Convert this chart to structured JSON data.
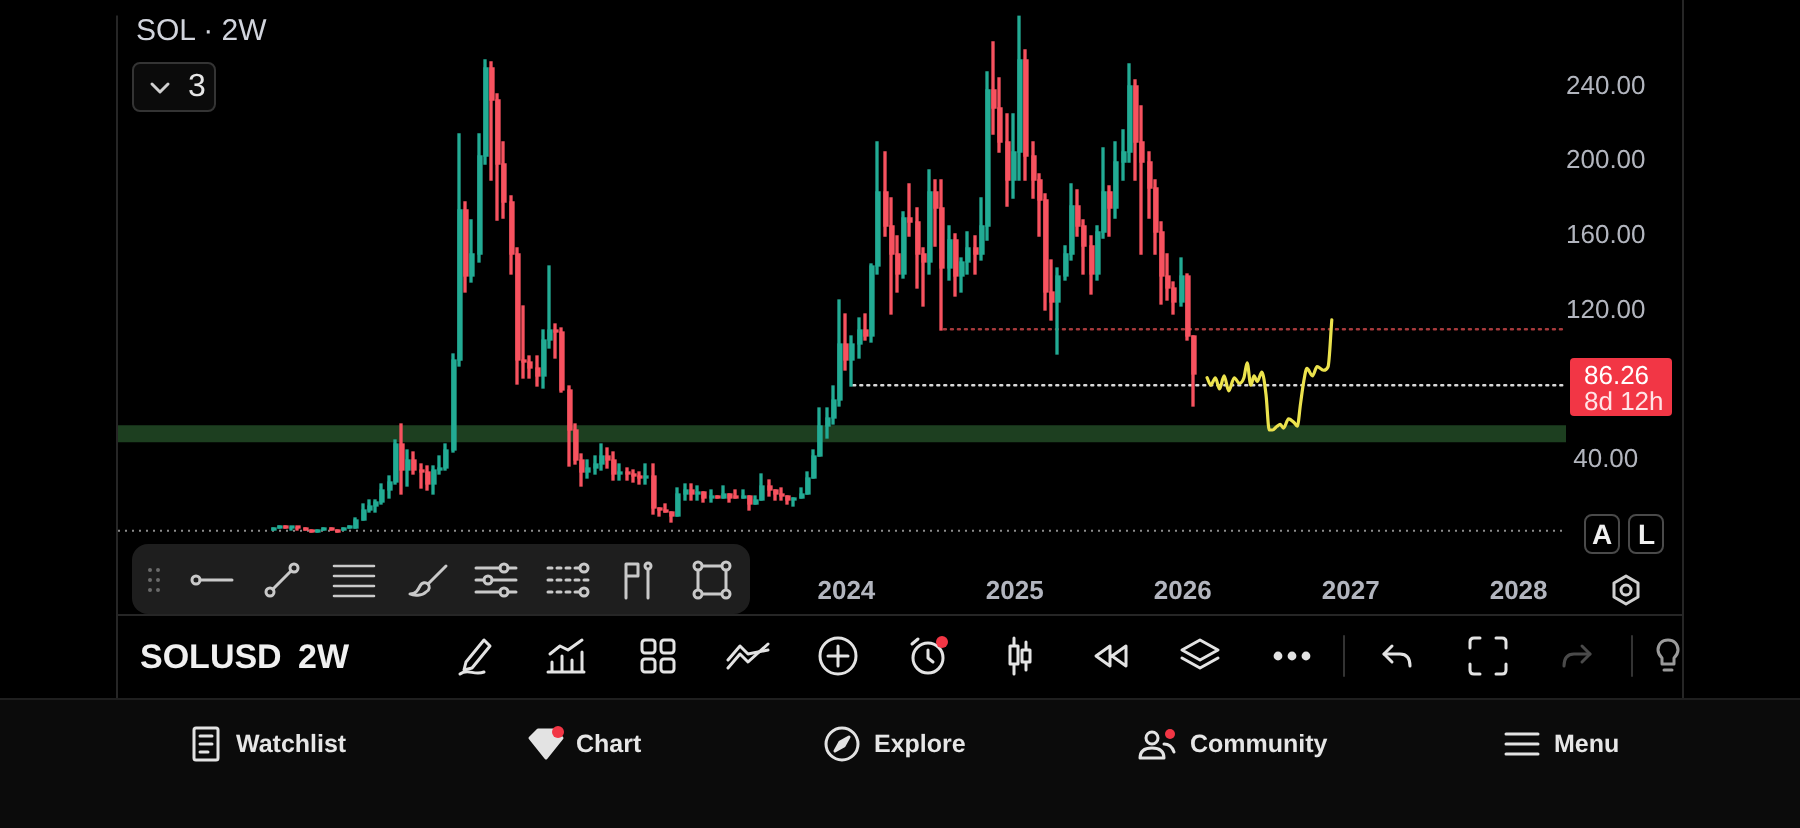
{
  "chart_data": {
    "type": "candlestick",
    "title": "SOL · 2W",
    "series": [
      {
        "x": [
          "2020-08-03",
          "2020-08-17",
          "2020-08-31",
          "2020-09-14",
          "2020-09-28",
          "2020-10-12",
          "2020-10-26",
          "2020-11-09",
          "2020-11-23",
          "2020-12-07",
          "2020-12-21",
          "2021-01-04",
          "2021-01-18",
          "2021-02-01",
          "2021-02-15",
          "2021-03-01",
          "2021-03-15",
          "2021-03-29",
          "2021-04-12",
          "2021-04-26",
          "2021-05-10",
          "2021-05-24",
          "2021-06-07",
          "2021-06-21",
          "2021-07-05",
          "2021-07-19",
          "2021-08-02",
          "2021-08-16",
          "2021-08-30",
          "2021-09-13",
          "2021-09-27",
          "2021-10-11",
          "2021-10-25",
          "2021-11-08",
          "2021-11-22",
          "2021-12-06",
          "2021-12-20",
          "2022-01-03",
          "2022-01-17",
          "2022-01-31",
          "2022-02-14",
          "2022-02-28",
          "2022-03-14",
          "2022-03-28",
          "2022-04-11",
          "2022-04-25",
          "2022-05-09",
          "2022-05-23",
          "2022-06-06",
          "2022-06-20",
          "2022-07-04",
          "2022-07-18",
          "2022-08-01",
          "2022-08-15",
          "2022-08-29",
          "2022-09-12",
          "2022-09-26",
          "2022-10-10",
          "2022-10-24",
          "2022-11-07",
          "2022-11-21",
          "2022-12-05",
          "2022-12-19",
          "2023-01-02",
          "2023-01-16",
          "2023-01-30",
          "2023-02-13",
          "2023-02-27",
          "2023-03-13",
          "2023-03-27",
          "2023-04-10",
          "2023-04-24",
          "2023-05-08",
          "2023-05-22",
          "2023-06-05",
          "2023-06-19",
          "2023-07-03",
          "2023-07-17",
          "2023-07-31",
          "2023-08-14",
          "2023-08-28",
          "2023-09-11",
          "2023-09-25",
          "2023-10-09",
          "2023-10-23",
          "2023-11-06",
          "2023-11-20",
          "2023-12-04",
          "2023-12-18",
          "2024-01-01",
          "2024-01-15",
          "2024-01-29",
          "2024-02-12",
          "2024-02-26",
          "2024-03-11",
          "2024-03-25",
          "2024-04-08",
          "2024-04-22",
          "2024-05-06",
          "2024-05-20",
          "2024-06-03",
          "2024-06-17",
          "2024-07-01",
          "2024-07-15",
          "2024-07-29",
          "2024-08-12",
          "2024-08-26",
          "2024-09-09",
          "2024-09-23",
          "2024-10-07",
          "2024-10-21",
          "2024-11-04",
          "2024-11-18",
          "2024-12-02",
          "2024-12-16",
          "2024-12-30",
          "2025-01-13",
          "2025-01-27",
          "2025-02-10",
          "2025-02-24",
          "2025-03-10",
          "2025-03-24",
          "2025-04-07",
          "2025-04-21",
          "2025-05-05",
          "2025-05-19",
          "2025-06-02",
          "2025-06-16",
          "2025-06-30",
          "2025-07-14",
          "2025-07-28",
          "2025-08-11",
          "2025-08-25",
          "2025-09-08",
          "2025-09-22",
          "2025-10-06",
          "2025-10-20",
          "2025-11-03",
          "2025-11-17",
          "2025-12-01",
          "2025-12-15",
          "2025-12-29",
          "2026-01-12",
          "2026-01-26"
        ],
        "ohlc": [
          [
            2,
            3,
            2,
            3
          ],
          [
            3,
            5,
            3,
            5
          ],
          [
            5,
            5,
            3,
            3
          ],
          [
            3,
            4,
            3,
            4
          ],
          [
            4,
            4,
            3,
            3
          ],
          [
            3,
            3,
            2,
            2
          ],
          [
            2,
            2,
            1,
            1
          ],
          [
            1,
            2,
            1,
            2
          ],
          [
            2,
            3,
            2,
            3
          ],
          [
            3,
            3,
            2,
            2
          ],
          [
            2,
            2,
            1,
            1
          ],
          [
            2,
            4,
            2,
            3
          ],
          [
            3,
            5,
            3,
            4
          ],
          [
            4,
            9,
            4,
            8
          ],
          [
            8,
            16,
            8,
            13
          ],
          [
            13,
            18,
            12,
            15
          ],
          [
            15,
            18,
            12,
            17
          ],
          [
            17,
            27,
            16,
            24
          ],
          [
            24,
            31,
            20,
            28
          ],
          [
            28,
            51,
            27,
            48
          ],
          [
            48,
            59,
            22,
            35
          ],
          [
            35,
            45,
            26,
            40
          ],
          [
            40,
            44,
            32,
            35
          ],
          [
            35,
            38,
            25,
            34
          ],
          [
            34,
            37,
            24,
            27
          ],
          [
            27,
            37,
            22,
            35
          ],
          [
            35,
            42,
            32,
            36
          ],
          [
            36,
            48,
            35,
            45
          ],
          [
            45,
            97,
            44,
            94
          ],
          [
            94,
            215,
            90,
            174
          ],
          [
            174,
            178,
            130,
            139
          ],
          [
            139,
            168,
            135,
            150
          ],
          [
            150,
            215,
            146,
            203
          ],
          [
            203,
            254,
            198,
            250
          ],
          [
            250,
            253,
            190,
            233
          ],
          [
            233,
            236,
            168,
            198
          ],
          [
            198,
            210,
            170,
            178
          ],
          [
            178,
            181,
            140,
            150
          ],
          [
            150,
            153,
            81,
            94
          ],
          [
            94,
            122,
            84,
            92
          ],
          [
            92,
            96,
            84,
            89
          ],
          [
            89,
            96,
            80,
            85
          ],
          [
            85,
            110,
            78,
            104
          ],
          [
            104,
            144,
            100,
            110
          ],
          [
            110,
            113,
            95,
            108
          ],
          [
            108,
            111,
            76,
            77
          ],
          [
            77,
            80,
            37,
            56
          ],
          [
            56,
            59,
            38,
            40
          ],
          [
            40,
            43,
            26,
            34
          ],
          [
            34,
            40,
            30,
            36
          ],
          [
            36,
            42,
            32,
            38
          ],
          [
            38,
            48,
            35,
            42
          ],
          [
            42,
            46,
            36,
            40
          ],
          [
            40,
            44,
            29,
            32
          ],
          [
            32,
            38,
            29,
            33
          ],
          [
            33,
            36,
            29,
            32
          ],
          [
            32,
            35,
            28,
            31
          ],
          [
            31,
            34,
            27,
            30
          ],
          [
            30,
            38,
            27,
            31
          ],
          [
            31,
            38,
            11,
            14
          ],
          [
            14,
            14,
            10,
            13
          ],
          [
            13,
            16,
            12,
            12
          ],
          [
            12,
            12,
            7,
            10
          ],
          [
            10,
            25,
            10,
            22
          ],
          [
            22,
            27,
            19,
            24
          ],
          [
            24,
            27,
            19,
            22
          ],
          [
            22,
            26,
            19,
            23
          ],
          [
            23,
            23,
            17,
            20
          ],
          [
            20,
            24,
            17,
            21
          ],
          [
            21,
            21,
            20,
            20
          ],
          [
            20,
            26,
            20,
            22
          ],
          [
            22,
            22,
            17,
            20
          ],
          [
            21,
            24,
            20,
            20
          ],
          [
            20,
            24,
            20,
            21
          ],
          [
            21,
            21,
            13,
            16
          ],
          [
            16,
            21,
            16,
            18
          ],
          [
            18,
            32,
            18,
            26
          ],
          [
            26,
            29,
            21,
            24
          ],
          [
            24,
            24,
            19,
            22
          ],
          [
            22,
            25,
            18,
            21
          ],
          [
            21,
            21,
            16,
            19
          ],
          [
            18,
            20,
            15,
            20
          ],
          [
            20,
            25,
            20,
            22
          ],
          [
            22,
            33,
            22,
            30
          ],
          [
            30,
            45,
            30,
            42
          ],
          [
            42,
            68,
            42,
            58
          ],
          [
            58,
            68,
            52,
            62
          ],
          [
            62,
            80,
            59,
            72
          ],
          [
            72,
            126,
            69,
            102
          ],
          [
            102,
            118,
            88,
            94
          ],
          [
            94,
            106,
            80,
            102
          ],
          [
            102,
            116,
            95,
            110
          ],
          [
            110,
            118,
            104,
            106
          ],
          [
            106,
            145,
            103,
            144
          ],
          [
            144,
            210,
            140,
            184
          ],
          [
            184,
            205,
            160,
            165
          ],
          [
            165,
            180,
            118,
            150
          ],
          [
            150,
            160,
            130,
            140
          ],
          [
            140,
            173,
            137,
            170
          ],
          [
            170,
            188,
            160,
            167
          ],
          [
            167,
            175,
            132,
            150
          ],
          [
            150,
            153,
            122,
            146
          ],
          [
            146,
            195,
            140,
            184
          ],
          [
            184,
            190,
            155,
            175
          ],
          [
            175,
            190,
            110,
            143
          ],
          [
            143,
            165,
            136,
            158
          ],
          [
            158,
            161,
            128,
            139
          ],
          [
            139,
            148,
            130,
            146
          ],
          [
            146,
            162,
            140,
            153
          ],
          [
            153,
            160,
            140,
            150
          ],
          [
            150,
            180,
            147,
            165
          ],
          [
            165,
            248,
            158,
            238
          ],
          [
            238,
            264,
            215,
            228
          ],
          [
            228,
            245,
            205,
            210
          ],
          [
            210,
            225,
            176,
            190
          ],
          [
            190,
            225,
            180,
            205
          ],
          [
            205,
            278,
            190,
            254
          ],
          [
            254,
            260,
            190,
            203
          ],
          [
            203,
            210,
            180,
            190
          ],
          [
            190,
            193,
            160,
            179
          ],
          [
            179,
            182,
            120,
            130
          ],
          [
            130,
            147,
            115,
            125
          ],
          [
            125,
            143,
            97,
            139
          ],
          [
            139,
            155,
            136,
            150
          ],
          [
            150,
            188,
            147,
            176
          ],
          [
            176,
            185,
            160,
            165
          ],
          [
            165,
            168,
            140,
            155
          ],
          [
            155,
            160,
            129,
            140
          ],
          [
            140,
            165,
            136,
            162
          ],
          [
            162,
            207,
            159,
            184
          ],
          [
            184,
            187,
            160,
            175
          ],
          [
            175,
            210,
            170,
            200
          ],
          [
            200,
            217,
            190,
            205
          ],
          [
            205,
            252,
            200,
            240
          ],
          [
            240,
            243,
            190,
            210
          ],
          [
            210,
            230,
            150,
            200
          ],
          [
            200,
            205,
            170,
            186
          ],
          [
            186,
            190,
            150,
            162
          ],
          [
            162,
            167,
            123,
            139
          ],
          [
            139,
            150,
            126,
            132
          ],
          [
            132,
            135,
            118,
            125
          ],
          [
            125,
            148,
            122,
            139
          ],
          [
            139,
            140,
            104,
            106
          ],
          [
            106,
            106,
            69,
            86.26
          ]
        ],
        "colors": [
          "#22ab94",
          "#22ab94",
          "#f7525f",
          "#22ab94",
          "#f7525f",
          "#f7525f",
          "#f7525f",
          "#22ab94",
          "#22ab94",
          "#f7525f",
          "#f7525f",
          "#22ab94",
          "#22ab94",
          "#22ab94",
          "#22ab94",
          "#22ab94",
          "#22ab94",
          "#22ab94",
          "#22ab94",
          "#22ab94",
          "#f7525f",
          "#22ab94",
          "#f7525f",
          "#f7525f",
          "#f7525f",
          "#22ab94",
          "#22ab94",
          "#22ab94",
          "#22ab94",
          "#22ab94",
          "#f7525f",
          "#22ab94",
          "#22ab94",
          "#22ab94",
          "#f7525f",
          "#f7525f",
          "#f7525f",
          "#f7525f",
          "#f7525f",
          "#f7525f",
          "#f7525f",
          "#f7525f",
          "#22ab94",
          "#22ab94",
          "#f7525f",
          "#f7525f",
          "#f7525f",
          "#f7525f",
          "#f7525f",
          "#22ab94",
          "#22ab94",
          "#22ab94",
          "#f7525f",
          "#f7525f",
          "#22ab94",
          "#f7525f",
          "#f7525f",
          "#f7525f",
          "#22ab94",
          "#f7525f",
          "#f7525f",
          "#f7525f",
          "#f7525f",
          "#22ab94",
          "#22ab94",
          "#f7525f",
          "#22ab94",
          "#f7525f",
          "#22ab94",
          "#f7525f",
          "#22ab94",
          "#f7525f",
          "#f7525f",
          "#22ab94",
          "#f7525f",
          "#22ab94",
          "#22ab94",
          "#f7525f",
          "#f7525f",
          "#f7525f",
          "#f7525f",
          "#22ab94",
          "#22ab94",
          "#22ab94",
          "#22ab94",
          "#22ab94",
          "#22ab94",
          "#22ab94",
          "#22ab94",
          "#f7525f",
          "#22ab94",
          "#22ab94",
          "#f7525f",
          "#22ab94",
          "#22ab94",
          "#f7525f",
          "#f7525f",
          "#f7525f",
          "#22ab94",
          "#f7525f",
          "#f7525f",
          "#f7525f",
          "#22ab94",
          "#f7525f",
          "#f7525f",
          "#22ab94",
          "#f7525f",
          "#22ab94",
          "#22ab94",
          "#f7525f",
          "#22ab94",
          "#22ab94",
          "#f7525f",
          "#f7525f",
          "#f7525f",
          "#22ab94",
          "#22ab94",
          "#f7525f",
          "#f7525f",
          "#f7525f",
          "#f7525f",
          "#f7525f",
          "#22ab94",
          "#22ab94",
          "#22ab94",
          "#f7525f",
          "#f7525f",
          "#f7525f",
          "#22ab94",
          "#22ab94",
          "#f7525f",
          "#22ab94",
          "#22ab94",
          "#22ab94",
          "#f7525f",
          "#f7525f",
          "#f7525f",
          "#f7525f",
          "#f7525f",
          "#f7525f",
          "#f7525f",
          "#22ab94",
          "#f7525f",
          "#f7525f"
        ]
      },
      {
        "type": "line",
        "x": [
          "2026-02-23",
          "2026-03-03",
          "2026-03-13",
          "2026-03-22",
          "2026-04-01",
          "2026-04-11",
          "2026-04-23",
          "2026-05-04",
          "2026-05-14",
          "2026-05-21",
          "2026-05-29",
          "2026-06-05",
          "2026-06-12",
          "2026-06-22",
          "2026-07-01",
          "2026-07-08",
          "2026-07-15",
          "2026-07-25",
          "2026-08-01",
          "2026-08-08",
          "2026-08-19",
          "2026-08-31",
          "2026-09-07",
          "2026-09-14",
          "2026-09-21",
          "2026-09-28",
          "2026-10-10",
          "2026-10-20",
          "2026-11-03",
          "2026-11-13",
          "2026-11-21"
        ],
        "values": [
          84,
          80,
          84,
          78,
          85,
          77,
          84,
          81,
          84,
          92,
          80,
          85,
          82,
          87,
          75,
          56,
          56,
          58,
          59,
          57,
          62,
          60,
          58,
          70,
          82,
          89,
          85,
          90,
          88,
          90,
          115
        ],
        "color": "#ebe24d",
        "line_style": "solid"
      },
      {
        "type": "line",
        "x": [
          "2024-07-31",
          "2028-04-13"
        ],
        "values": [
          110,
          110
        ],
        "color": "#a63a3c",
        "line_style": "dotted"
      },
      {
        "type": "line",
        "x": [
          "2024-01-16",
          "2028-04-13"
        ],
        "values": [
          80,
          80
        ],
        "color": "#d9d9d9",
        "line_style": "dotted"
      }
    ],
    "xlim": [
      "2019-09-01",
      "2028-04-13"
    ],
    "xticks": [
      "2024",
      "2025",
      "2026",
      "2027",
      "2028"
    ],
    "ylim": [
      -4,
      278
    ],
    "yticks": [
      {
        "value": 40,
        "label": "40.00"
      },
      {
        "value": 120,
        "label": "120.00"
      },
      {
        "value": 160,
        "label": "160.00"
      },
      {
        "value": 200,
        "label": "200.00"
      },
      {
        "value": 240,
        "label": "240.00"
      }
    ],
    "bands": [
      {
        "axis": "y",
        "from": 49.5,
        "to": 58.5,
        "color": "#1d3f20"
      }
    ],
    "ref_lines": [
      {
        "axis": "y",
        "value": 2,
        "color": "#8c8c8c",
        "line_style": "dotted"
      }
    ],
    "marker": "none",
    "annotations": [
      "86.26",
      "8d 12h",
      "3",
      "A",
      "L",
      "SOLUSD",
      "2W",
      "Watchlist",
      "Chart",
      "Explore",
      "Community",
      "Menu"
    ]
  }
}
